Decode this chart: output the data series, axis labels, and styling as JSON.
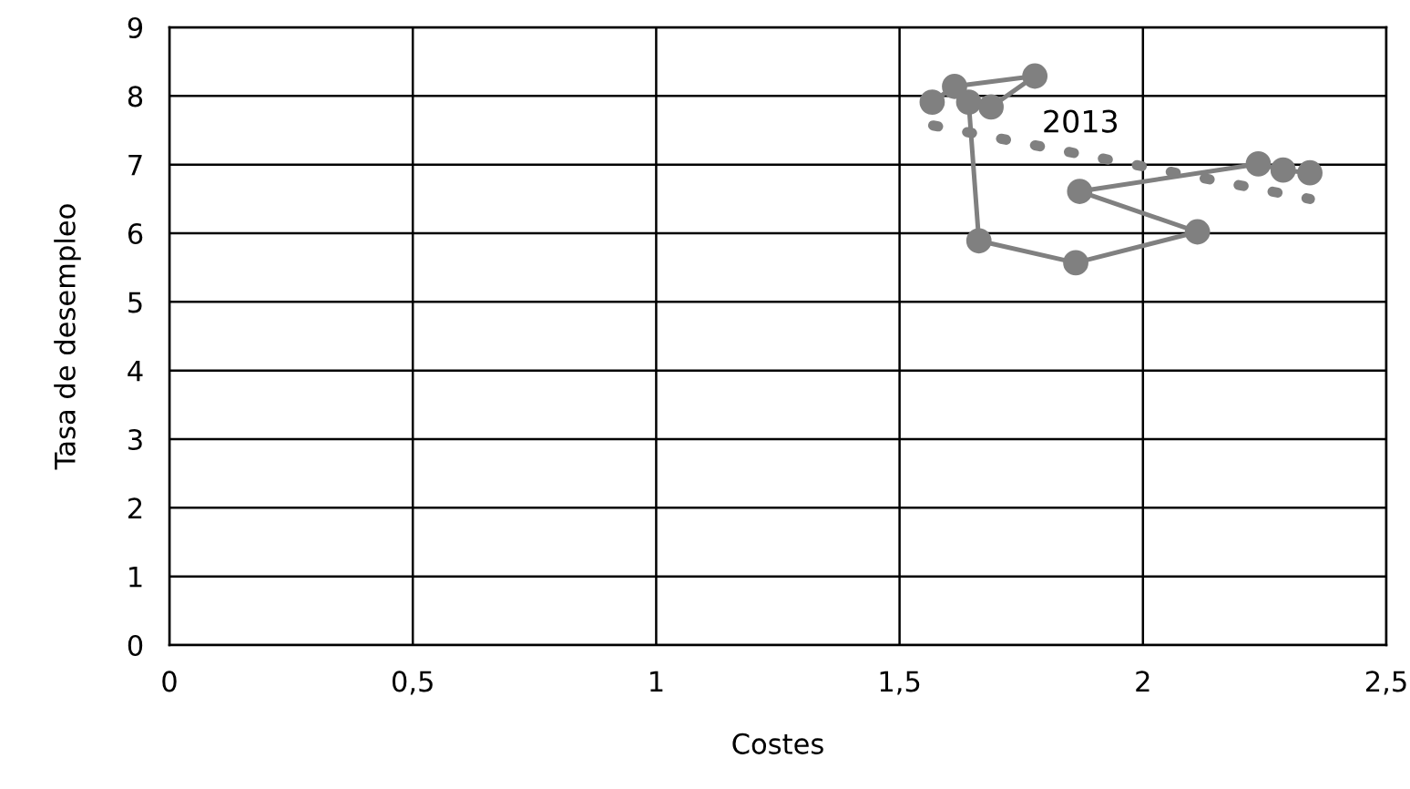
{
  "chart_data": {
    "type": "line",
    "xlabel": "Costes",
    "ylabel": "Tasa de desempleo",
    "xlim": [
      0,
      2.5
    ],
    "xticks": [
      0,
      {
        "value": 0.5,
        "label": "0,5"
      },
      1,
      {
        "value": 1.5,
        "label": "1,5"
      },
      2,
      {
        "value": 2.5,
        "label": "2,5"
      }
    ],
    "ylim": [
      0,
      9
    ],
    "yticks": [
      0,
      1,
      2,
      3,
      4,
      5,
      6,
      7,
      8,
      9
    ],
    "grid": true,
    "annotations": [
      "2013"
    ],
    "series": [
      {
        "color": "#808080",
        "marker": "circle",
        "line_style": "solid",
        "x": [
          1.567,
          1.613,
          1.778,
          1.688,
          1.642,
          1.663,
          1.862,
          2.112,
          1.87,
          2.237,
          2.288,
          2.343
        ],
        "values": [
          7.91,
          8.14,
          8.29,
          7.84,
          7.91,
          5.89,
          5.57,
          6.02,
          6.61,
          7.01,
          6.92,
          6.88
        ]
      },
      {
        "color": "#808080",
        "marker": "none",
        "line_style": "dotted",
        "x": [
          1.569,
          2.343
        ],
        "values": [
          7.57,
          6.5
        ]
      }
    ]
  }
}
